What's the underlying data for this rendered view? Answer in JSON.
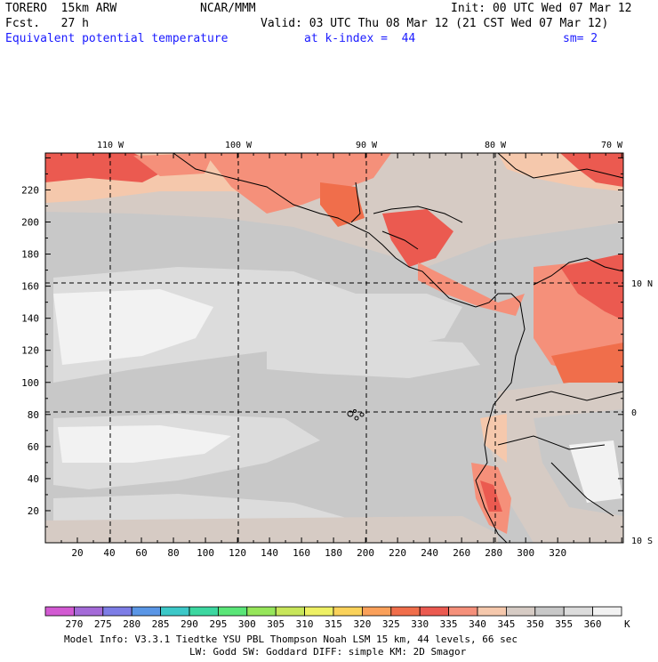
{
  "header": {
    "model": "TORERO  15km ARW",
    "org": "NCAR/MMM",
    "init": "Init: 00 UTC Wed 07 Mar 12",
    "fcst": "Fcst.   27 h",
    "valid": "Valid: 03 UTC Thu 08 Mar 12 (21 CST Wed 07 Mar 12)",
    "field": "Equivalent potential temperature",
    "level": "at k-index =  44",
    "smooth": "sm= 2"
  },
  "map": {
    "lon_labels": [
      "110 W",
      "100 W",
      "90 W",
      "80 W",
      "70 W"
    ],
    "lat_labels": [
      "10 N",
      "0",
      "10 S"
    ],
    "y_ticks": [
      "20",
      "40",
      "60",
      "80",
      "100",
      "120",
      "140",
      "160",
      "180",
      "200",
      "220"
    ],
    "x_ticks": [
      "20",
      "40",
      "60",
      "80",
      "100",
      "120",
      "140",
      "160",
      "180",
      "200",
      "220",
      "240",
      "260",
      "280",
      "300",
      "320"
    ]
  },
  "colorbar": {
    "labels": [
      "270",
      "275",
      "280",
      "285",
      "290",
      "295",
      "300",
      "305",
      "310",
      "315",
      "320",
      "325",
      "330",
      "335",
      "340",
      "345",
      "350",
      "355",
      "360"
    ],
    "unit": "K",
    "colors": [
      "#d25ad2",
      "#a46ad8",
      "#7d7de6",
      "#5a96e6",
      "#3cc8c8",
      "#3cd7a0",
      "#5ae678",
      "#96e65a",
      "#c8e65a",
      "#eef064",
      "#fad25a",
      "#faa05a",
      "#f06e4b",
      "#eb5a50",
      "#f5907a",
      "#f5c8ac",
      "#d6cbc4",
      "#c8c8c8",
      "#dcdcdc",
      "#f2f2f2"
    ]
  },
  "footer": {
    "line1": "Model Info: V3.3.1    Tiedtke YSU PBL  Thompson    Noah LSM  15 km,   44 levels,   66 sec",
    "line2": "LW: Godd SW: Goddard DIFF: simple KM: 2D Smagor"
  }
}
